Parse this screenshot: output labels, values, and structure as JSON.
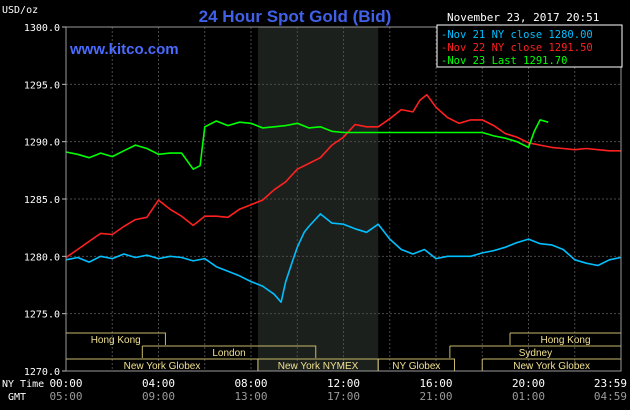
{
  "chart_data": {
    "type": "line",
    "title": "24 Hour Spot Gold (Bid)",
    "watermark": "www.kitco.com",
    "datetime": "November 23, 2017 20:51",
    "ylabel": "USD/oz",
    "ylim": [
      1270,
      1300
    ],
    "y_ticks": [
      "1300.0",
      "1295.0",
      "1290.0",
      "1285.0",
      "1280.0",
      "1275.0",
      "1270.0"
    ],
    "x_ticks_ny": [
      "00:00",
      "04:00",
      "08:00",
      "12:00",
      "16:00",
      "20:00",
      "23:59"
    ],
    "x_ticks_gmt": [
      "05:00",
      "09:00",
      "13:00",
      "17:00",
      "21:00",
      "01:00",
      "04:59"
    ],
    "x_axis_label_ny": "NY Time",
    "x_axis_label_gmt": "GMT",
    "grid": true,
    "legend_position": "top-right",
    "shaded_session": {
      "start": 8.3,
      "end": 13.5,
      "color": "#1c201c"
    },
    "sessions": [
      {
        "label": "Hong Kong",
        "start": 0,
        "end": 4.3,
        "row": 0
      },
      {
        "label": "London",
        "start": 3.3,
        "end": 10.8,
        "row": 1
      },
      {
        "label": "New York Globex",
        "start": 0,
        "end": 8.3,
        "row": 2
      },
      {
        "label": "New York NYMEX",
        "start": 8.3,
        "end": 13.5,
        "row": 2
      },
      {
        "label": "NY Globex",
        "start": 13.5,
        "end": 16.8,
        "row": 2
      },
      {
        "label": "Hong Kong",
        "start": 19.2,
        "end": 24,
        "row": 0
      },
      {
        "label": "Sydney",
        "start": 16.6,
        "end": 24,
        "row": 1
      },
      {
        "label": "New York Globex",
        "start": 18.0,
        "end": 24,
        "row": 2
      }
    ],
    "series": [
      {
        "name": "Nov 21 NY close 1280.00",
        "color": "#00bfff",
        "x": [
          0,
          0.5,
          1,
          1.5,
          2,
          2.5,
          3,
          3.5,
          4,
          4.5,
          5,
          5.5,
          6,
          6.5,
          7,
          7.5,
          8,
          8.5,
          9,
          9.3,
          9.5,
          9.8,
          10,
          10.3,
          10.5,
          11,
          11.5,
          12,
          12.5,
          13,
          13.5,
          14,
          14.5,
          15,
          15.5,
          16,
          16.5,
          17,
          17.5,
          18,
          18.5,
          19,
          19.5,
          20,
          20.5,
          21,
          21.5,
          22,
          22.5,
          23,
          23.5,
          23.98
        ],
        "y": [
          1279.7,
          1279.9,
          1279.5,
          1280.0,
          1279.8,
          1280.2,
          1279.9,
          1280.1,
          1279.8,
          1280.0,
          1279.9,
          1279.6,
          1279.8,
          1279.1,
          1278.7,
          1278.3,
          1277.8,
          1277.4,
          1276.7,
          1276.0,
          1277.8,
          1279.6,
          1280.8,
          1282.1,
          1282.6,
          1283.7,
          1282.9,
          1282.8,
          1282.4,
          1282.1,
          1282.8,
          1281.5,
          1280.6,
          1280.2,
          1280.6,
          1279.8,
          1280.0,
          1280.0,
          1280.0,
          1280.3,
          1280.5,
          1280.8,
          1281.2,
          1281.5,
          1281.1,
          1281.0,
          1280.6,
          1279.7,
          1279.4,
          1279.2,
          1279.7,
          1279.9
        ]
      },
      {
        "name": "Nov 22 NY close 1291.50",
        "color": "#ff2020",
        "x": [
          0,
          0.5,
          1,
          1.5,
          2,
          2.5,
          3,
          3.5,
          4,
          4.5,
          5,
          5.5,
          6,
          6.5,
          7,
          7.5,
          8,
          8.5,
          9,
          9.5,
          10,
          10.5,
          11,
          11.5,
          12,
          12.5,
          13,
          13.5,
          14,
          14.5,
          15,
          15.3,
          15.6,
          16,
          16.5,
          17,
          17.5,
          18,
          18.5,
          19,
          19.5,
          20,
          20.5,
          21,
          21.5,
          22,
          22.5,
          23,
          23.5,
          23.98
        ],
        "y": [
          1279.9,
          1280.6,
          1281.3,
          1282.0,
          1281.9,
          1282.6,
          1283.2,
          1283.4,
          1284.9,
          1284.1,
          1283.5,
          1282.7,
          1283.5,
          1283.5,
          1283.4,
          1284.1,
          1284.5,
          1284.9,
          1285.8,
          1286.5,
          1287.6,
          1288.1,
          1288.6,
          1289.7,
          1290.4,
          1291.5,
          1291.3,
          1291.3,
          1292.0,
          1292.8,
          1292.6,
          1293.6,
          1294.1,
          1293.0,
          1292.1,
          1291.6,
          1291.9,
          1291.9,
          1291.4,
          1290.7,
          1290.4,
          1289.9,
          1289.7,
          1289.5,
          1289.4,
          1289.3,
          1289.4,
          1289.3,
          1289.2,
          1289.2
        ]
      },
      {
        "name": "Nov 23 Last 1291.70",
        "color": "#00ff00",
        "x": [
          0,
          0.5,
          1,
          1.5,
          2,
          2.5,
          3,
          3.5,
          4,
          4.5,
          5,
          5.5,
          5.8,
          6,
          6.5,
          7,
          7.5,
          8,
          8.5,
          9,
          9.5,
          10,
          10.5,
          11,
          11.5,
          12,
          12.5,
          13,
          13.5,
          14,
          14.5,
          15,
          15.5,
          16,
          16.5,
          17,
          17.5,
          18,
          18.5,
          19,
          19.5,
          20,
          20.25,
          20.5,
          20.85
        ],
        "y": [
          1289.1,
          1288.9,
          1288.6,
          1289.0,
          1288.7,
          1289.2,
          1289.7,
          1289.4,
          1288.9,
          1289.0,
          1289.0,
          1287.6,
          1287.9,
          1291.3,
          1291.8,
          1291.4,
          1291.7,
          1291.6,
          1291.2,
          1291.3,
          1291.4,
          1291.6,
          1291.2,
          1291.3,
          1290.9,
          1290.8,
          1290.8,
          1290.8,
          1290.8,
          1290.8,
          1290.8,
          1290.8,
          1290.8,
          1290.8,
          1290.8,
          1290.8,
          1290.8,
          1290.8,
          1290.5,
          1290.3,
          1290.0,
          1289.5,
          1290.9,
          1291.9,
          1291.7
        ]
      }
    ]
  }
}
